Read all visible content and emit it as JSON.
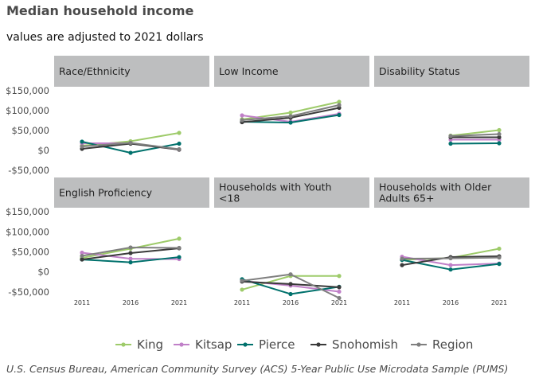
{
  "title": "Median household income",
  "subtitle": "values are adjusted to 2021 dollars",
  "caption": "U.S. Census Bureau, American Community Survey (ACS) 5-Year Public Use Microdata Sample (PUMS)",
  "colors": {
    "King": "#9ecb6a",
    "Kitsap": "#c080c8",
    "Pierce": "#00716c",
    "Snohomish": "#3a3a3a",
    "Region": "#7f7f7f",
    "strip": "#bdbebf",
    "text": "#4a4a4a"
  },
  "legend": [
    "King",
    "Kitsap",
    "Pierce",
    "Snohomish",
    "Region"
  ],
  "chart_data": {
    "type": "line",
    "x": [
      "2011",
      "2016",
      "2021"
    ],
    "ylim": [
      -60000,
      160000
    ],
    "yticks": [
      -50000,
      0,
      50000,
      100000,
      150000
    ],
    "ytick_labels": [
      "-$50,000",
      "$0",
      "$50,000",
      "$100,000",
      "$150,000"
    ],
    "xtick_labels": [
      "2011",
      "2016",
      "2021"
    ],
    "grid": false,
    "legend_position": "bottom",
    "panels": [
      {
        "strip": "Race/Ethnicity",
        "series": [
          {
            "name": "King",
            "values": [
              12000,
              23000,
              44000
            ]
          },
          {
            "name": "Kitsap",
            "values": [
              18000,
              18000,
              2000
            ]
          },
          {
            "name": "Pierce",
            "values": [
              22000,
              -6000,
              17000
            ]
          },
          {
            "name": "Snohomish",
            "values": [
              4000,
              17000,
              2000
            ]
          },
          {
            "name": "Region",
            "values": [
              10000,
              19000,
              3000
            ]
          }
        ]
      },
      {
        "strip": "Low Income",
        "series": [
          {
            "name": "King",
            "values": [
              78000,
              95000,
              122000
            ]
          },
          {
            "name": "Kitsap",
            "values": [
              88000,
              72000,
              92000
            ]
          },
          {
            "name": "Pierce",
            "values": [
              72000,
              70000,
              89000
            ]
          },
          {
            "name": "Snohomish",
            "values": [
              71000,
              82000,
              107000
            ]
          },
          {
            "name": "Region",
            "values": [
              76000,
              86000,
              114000
            ]
          }
        ]
      },
      {
        "strip": "Disability Status",
        "series": [
          {
            "name": "King",
            "values": [
              null,
              37000,
              51000
            ]
          },
          {
            "name": "Kitsap",
            "values": [
              null,
              27000,
              27000
            ]
          },
          {
            "name": "Pierce",
            "values": [
              null,
              17000,
              18000
            ]
          },
          {
            "name": "Snohomish",
            "values": [
              null,
              33000,
              33000
            ]
          },
          {
            "name": "Region",
            "values": [
              null,
              36000,
              41000
            ]
          }
        ]
      },
      {
        "strip": "English Proficiency",
        "series": [
          {
            "name": "King",
            "values": [
              35000,
              58000,
              83000
            ]
          },
          {
            "name": "Kitsap",
            "values": [
              48000,
              33000,
              32000
            ]
          },
          {
            "name": "Pierce",
            "values": [
              31000,
              24000,
              37000
            ]
          },
          {
            "name": "Snohomish",
            "values": [
              31000,
              47000,
              59000
            ]
          },
          {
            "name": "Region",
            "values": [
              40000,
              61000,
              60000
            ]
          }
        ]
      },
      {
        "strip": "Households with Youth <18",
        "series": [
          {
            "name": "King",
            "values": [
              -44000,
              -10000,
              -10000
            ]
          },
          {
            "name": "Kitsap",
            "values": [
              -22000,
              -34000,
              -49000
            ]
          },
          {
            "name": "Pierce",
            "values": [
              -18000,
              -55000,
              -37000
            ]
          },
          {
            "name": "Snohomish",
            "values": [
              -24000,
              -30000,
              -38000
            ]
          },
          {
            "name": "Region",
            "values": [
              -22000,
              -6000,
              -65000
            ]
          }
        ]
      },
      {
        "strip": "Households with Older Adults 65+",
        "series": [
          {
            "name": "King",
            "values": [
              30000,
              35000,
              58000
            ]
          },
          {
            "name": "Kitsap",
            "values": [
              38000,
              17000,
              21000
            ]
          },
          {
            "name": "Pierce",
            "values": [
              30000,
              6000,
              20000
            ]
          },
          {
            "name": "Snohomish",
            "values": [
              17000,
              37000,
              39000
            ]
          },
          {
            "name": "Region",
            "values": [
              33000,
              34000,
              36000
            ]
          }
        ]
      }
    ]
  }
}
